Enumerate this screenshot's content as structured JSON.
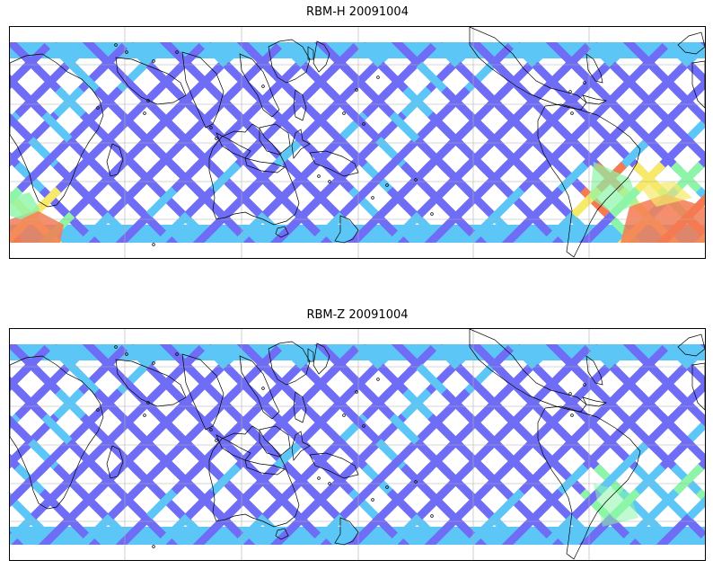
{
  "panels": [
    {
      "title": "RBM-H 20091004",
      "variable": "RBM-H",
      "date": "20091004",
      "projection": "equirectangular, Pacific-centered, latitude approx. -60 to 60",
      "gridlines": true,
      "coastlines": true,
      "colormap": "jet",
      "swath_color_low": "#6f6cf5",
      "swath_color_mid_low": "#5cc7f7",
      "swath_color_mid": "#8cf5a8",
      "swath_color_mid_high": "#f7e96a",
      "swath_color_high": "#f57a52"
    },
    {
      "title": "RBM-Z 20091004",
      "variable": "RBM-Z",
      "date": "20091004",
      "projection": "equirectangular, Pacific-centered, latitude approx. -60 to 60",
      "gridlines": true,
      "coastlines": true,
      "colormap": "jet",
      "swath_color_low": "#6f6cf5",
      "swath_color_mid_low": "#5cc7f7",
      "swath_color_mid": "#8cf5a8",
      "swath_color_mid_high": "#f7e96a",
      "swath_color_high": "#f57a52"
    }
  ]
}
